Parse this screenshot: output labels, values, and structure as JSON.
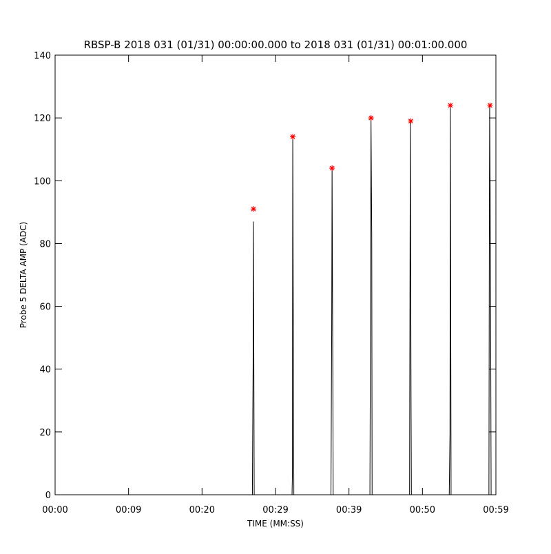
{
  "chart_data": {
    "type": "line",
    "title": "RBSP-B 2018 031 (01/31) 00:00:00.000 to 2018 031 (01/31) 00:01:00.000",
    "x_label": "TIME (MM:SS)",
    "y_label": "Probe 5 DELTA AMP (ADC)",
    "series": [
      {
        "style": "line",
        "color": "#000000",
        "x": [
          0,
          26.85,
          26.95,
          27.0,
          27.1,
          32.25,
          32.3,
          32.35,
          32.45,
          32.5,
          37.55,
          37.65,
          37.7,
          37.8,
          37.85,
          42.85,
          42.95,
          43.0,
          43.1,
          43.15,
          48.25,
          48.35,
          48.45,
          48.5,
          53.65,
          53.75,
          53.8,
          53.9,
          59.05,
          59.1,
          59.15,
          59.25,
          59.35,
          60
        ],
        "values": [
          0,
          0,
          42,
          87,
          0,
          0,
          6,
          114,
          31,
          0,
          0,
          54,
          104,
          39,
          0,
          0,
          72,
          120,
          82,
          0,
          0,
          119,
          31,
          0,
          0,
          20,
          124,
          0,
          0,
          75,
          124,
          83,
          0,
          0
        ]
      },
      {
        "style": "asterisk",
        "color": "#ff0000",
        "x": [
          27.0,
          32.35,
          37.7,
          43.0,
          48.4,
          53.8,
          59.2
        ],
        "values": [
          91,
          114,
          104,
          120,
          119,
          124,
          124
        ]
      }
    ],
    "xlim": [
      0,
      60
    ],
    "xticks": [
      {
        "value": 0,
        "label": "00:00"
      },
      {
        "value": 10,
        "label": "00:09"
      },
      {
        "value": 20,
        "label": "00:20"
      },
      {
        "value": 30,
        "label": "00:29"
      },
      {
        "value": 40,
        "label": "00:39"
      },
      {
        "value": 50,
        "label": "00:50"
      },
      {
        "value": 60,
        "label": "00:59"
      }
    ],
    "ylim": [
      0,
      140
    ],
    "yticks": [
      0,
      20,
      40,
      60,
      80,
      100,
      120,
      140
    ]
  }
}
